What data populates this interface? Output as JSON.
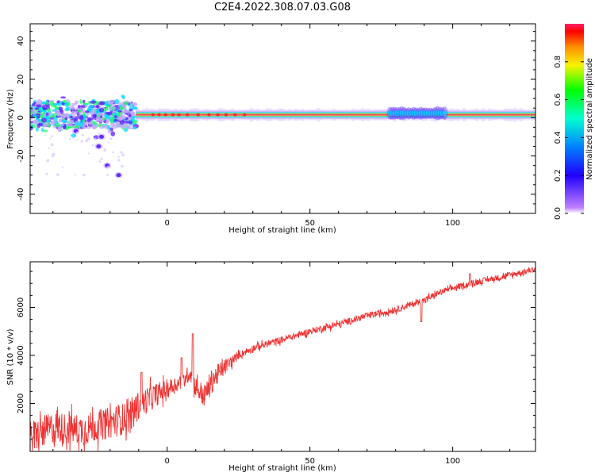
{
  "figure": {
    "title": "C2E4.2022.308.07.03.G08"
  },
  "chart_data": [
    {
      "type": "heatmap",
      "xlabel": "Height of straight line (km)",
      "ylabel": "Frequency (Hz)",
      "xlim": [
        -48,
        129
      ],
      "ylim": [
        -50,
        49
      ],
      "xticks": [
        0,
        50,
        100
      ],
      "yticks": [
        -40,
        -20,
        0,
        20,
        40
      ],
      "colorbar": {
        "label": "Normalized spectral amplitude",
        "range": [
          0.0,
          1.0
        ],
        "ticks": [
          "0.0",
          "0.2",
          "0.4",
          "0.6",
          "0.8"
        ],
        "colormap": "gist_rainbow (reversed)",
        "colors": [
          "#ff1f66",
          "#ff0000",
          "#ff8c00",
          "#f4f400",
          "#00ff00",
          "#00ffd0",
          "#0080ff",
          "#2000ff",
          "#c080ff",
          "#ffffff"
        ]
      },
      "features": {
        "dominant_line_frequency": 1.5,
        "strong_from_height": -11,
        "broadband_region": [
          -48,
          -11
        ],
        "scattered_low_frequency_blobs": [
          [
            -32,
            -7
          ],
          [
            -23,
            -10
          ],
          [
            -24,
            -15
          ],
          [
            -21,
            -25
          ],
          [
            -17,
            -30
          ]
        ],
        "enhanced_band": [
          78,
          98
        ]
      }
    },
    {
      "type": "line",
      "xlabel": "Height of straight line (km)",
      "ylabel": "SNR (10 * v/v)",
      "xlim": [
        -48,
        129
      ],
      "ylim": [
        0,
        7900
      ],
      "xticks": [
        0,
        50,
        100
      ],
      "yticks": [
        2000,
        4000,
        6000
      ],
      "line_color": "#ee3333",
      "trend": {
        "x": [
          -48,
          -40,
          -30,
          -20,
          -14,
          -10,
          -5,
          0,
          5,
          8,
          10,
          13,
          16,
          20,
          25,
          30,
          40,
          50,
          60,
          70,
          80,
          90,
          95,
          100,
          110,
          120,
          129
        ],
        "y": [
          600,
          1000,
          900,
          1200,
          1400,
          1900,
          2300,
          2600,
          2900,
          3300,
          2700,
          2300,
          3000,
          3500,
          4000,
          4300,
          4650,
          5000,
          5300,
          5650,
          5900,
          6300,
          6600,
          6800,
          7100,
          7350,
          7600
        ]
      },
      "noise_amplitude_by_x": {
        "x": [
          -48,
          -12,
          5,
          15,
          25,
          129
        ],
        "amp": [
          1100,
          1100,
          500,
          900,
          250,
          200
        ]
      },
      "spikes": [
        {
          "x": 9,
          "y": 4900
        },
        {
          "x": 5,
          "y": 3900
        },
        {
          "x": -9,
          "y": 3300
        },
        {
          "x": 89,
          "y": 5400
        },
        {
          "x": 106,
          "y": 7400
        }
      ]
    }
  ]
}
